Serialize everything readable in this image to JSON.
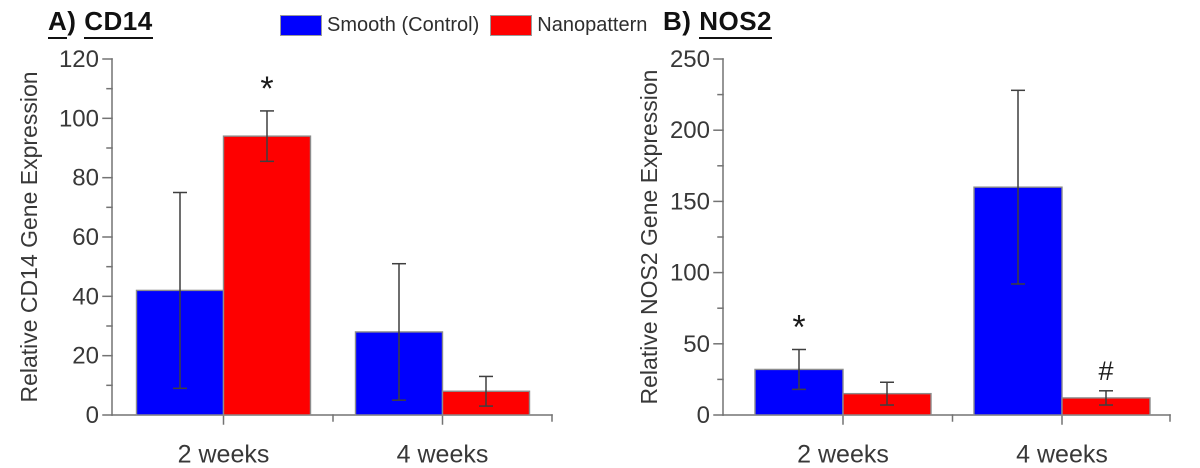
{
  "figure": {
    "background": "#ffffff"
  },
  "legend": {
    "position": "top-center",
    "items": [
      {
        "label": "Smooth (Control)",
        "color": "#0000fe"
      },
      {
        "label": "Nanopattern",
        "color": "#fe0000"
      }
    ]
  },
  "chart_data": [
    {
      "type": "bar",
      "panel": "A",
      "title": {
        "letter": "A",
        "paren": ")",
        "gene": "CD14"
      },
      "title_text": "A) CD14",
      "ylabel": "Relative CD14 Gene Expression",
      "xlabel": "",
      "categories": [
        "2 weeks",
        "4 weeks"
      ],
      "series": [
        {
          "name": "Smooth (Control)",
          "key": "smooth",
          "color": "#0000fe",
          "values": [
            42,
            28
          ],
          "errors": [
            33,
            23
          ]
        },
        {
          "name": "Nanopattern",
          "key": "nanopattern",
          "color": "#fe0000",
          "values": [
            94,
            8
          ],
          "errors": [
            8.5,
            5
          ]
        }
      ],
      "annotations": [
        {
          "series": 1,
          "category": 0,
          "text": "*",
          "meaning": "significant"
        }
      ],
      "ylim": [
        0,
        120
      ],
      "ytick_major": 20,
      "ytick_minor": 10,
      "grid": false,
      "legend_position": "top"
    },
    {
      "type": "bar",
      "panel": "B",
      "title": {
        "letter": "B",
        "paren": ")",
        "gene": "NOS2"
      },
      "title_text": "B) NOS2",
      "ylabel": "Relative NOS2 Gene Expression",
      "xlabel": "",
      "categories": [
        "2 weeks",
        "4 weeks"
      ],
      "series": [
        {
          "name": "Smooth (Control)",
          "key": "smooth",
          "color": "#0000fe",
          "values": [
            32,
            160
          ],
          "errors": [
            14,
            68
          ]
        },
        {
          "name": "Nanopattern",
          "key": "nanopattern",
          "color": "#fe0000",
          "values": [
            15,
            12
          ],
          "errors": [
            8,
            5
          ]
        }
      ],
      "annotations": [
        {
          "series": 0,
          "category": 0,
          "text": "*",
          "meaning": "significant"
        },
        {
          "series": 1,
          "category": 1,
          "text": "#",
          "meaning": "significant"
        }
      ],
      "ylim": [
        0,
        250
      ],
      "ytick_major": 50,
      "ytick_minor": 25,
      "grid": false,
      "legend_position": "top"
    }
  ]
}
